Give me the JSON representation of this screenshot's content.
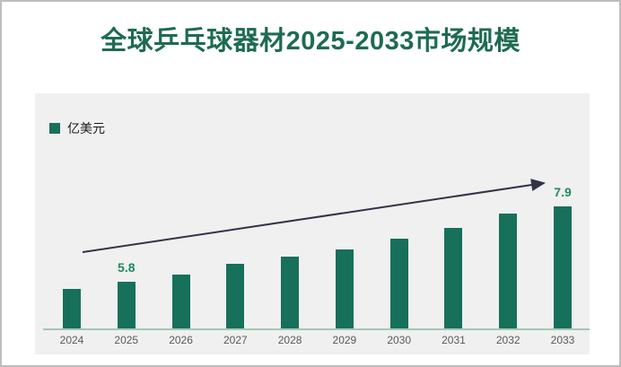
{
  "title": "全球乒乓球器材2025-2033市场规模",
  "legend": {
    "label": "亿美元"
  },
  "colors": {
    "title": "#1e6b51",
    "bar": "#17705a",
    "value_label": "#1f8a5e",
    "axis_line": "#a4c7b5",
    "panel_bg": "#f0f0f0",
    "arrow": "#32324a",
    "tick_label": "#5a5a5a",
    "border": "#bdbdbd"
  },
  "chart_data": {
    "type": "bar",
    "title": "全球乒乓球器材2025-2033市场规模",
    "unit": "亿美元",
    "categories": [
      "2024",
      "2025",
      "2026",
      "2027",
      "2028",
      "2029",
      "2030",
      "2031",
      "2032",
      "2033"
    ],
    "values": [
      5.6,
      5.8,
      6.0,
      6.3,
      6.5,
      6.7,
      7.0,
      7.3,
      7.7,
      7.9
    ],
    "data_labels": {
      "2025": "5.8",
      "2033": "7.9"
    },
    "xlabel": "",
    "ylabel": "亿美元",
    "ylim": [
      4.5,
      8.6
    ],
    "gridlines": false,
    "legend_position": "top-left",
    "trend_arrow": true
  }
}
